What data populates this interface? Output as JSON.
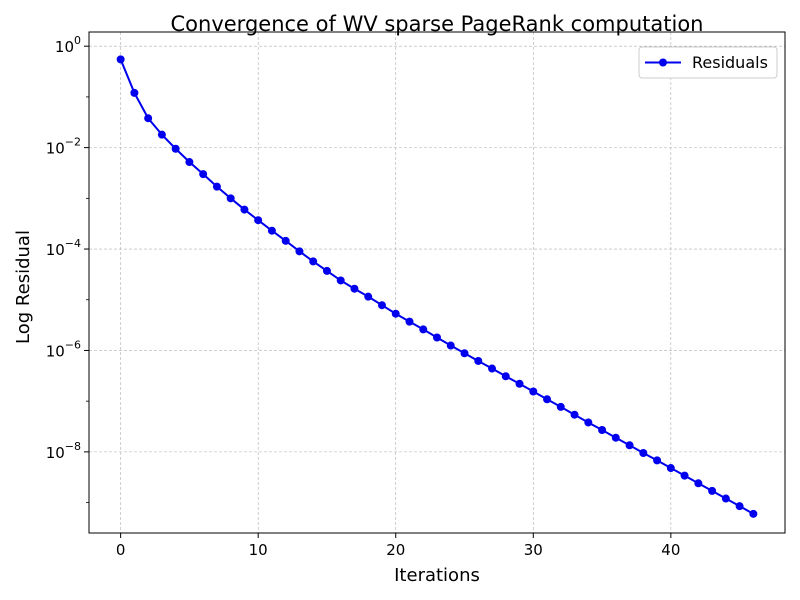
{
  "chart_data": {
    "type": "line",
    "title": "Convergence of WV sparse PageRank computation",
    "xlabel": "Iterations",
    "ylabel": "Log Residual",
    "yscale": "log",
    "xlim": [
      -2.3,
      48.3
    ],
    "ylim_log10": [
      -9.6,
      0.28
    ],
    "x_ticks": [
      0,
      10,
      20,
      30,
      40
    ],
    "y_ticks_log10": [
      0,
      -2,
      -4,
      -6,
      -8
    ],
    "grid": true,
    "legend_position": "top-right",
    "line_color": "#0000ee",
    "series": [
      {
        "name": "Residuals",
        "x": [
          0,
          1,
          2,
          3,
          4,
          5,
          6,
          7,
          8,
          9,
          10,
          11,
          12,
          13,
          14,
          15,
          16,
          17,
          18,
          19,
          20,
          21,
          22,
          23,
          24,
          25,
          26,
          27,
          28,
          29,
          30,
          31,
          32,
          33,
          34,
          35,
          36,
          37,
          38,
          39,
          40,
          41,
          42,
          43,
          44,
          45,
          46
        ],
        "y": [
          0.55,
          0.12,
          0.038,
          0.018,
          0.0095,
          0.0052,
          0.003,
          0.0017,
          0.001,
          0.0006,
          0.00037,
          0.00023,
          0.000145,
          9e-05,
          5.7e-05,
          3.7e-05,
          2.4e-05,
          1.65e-05,
          1.15e-05,
          7.8e-06,
          5.3e-06,
          3.7e-06,
          2.6e-06,
          1.8e-06,
          1.25e-06,
          8.8e-07,
          6.2e-07,
          4.4e-07,
          3.1e-07,
          2.2e-07,
          1.55e-07,
          1.09e-07,
          7.7e-08,
          5.4e-08,
          3.8e-08,
          2.7e-08,
          1.9e-08,
          1.35e-08,
          9.5e-09,
          6.8e-09,
          4.8e-09,
          3.4e-09,
          2.4e-09,
          1.7e-09,
          1.2e-09,
          8.5e-10,
          6e-10
        ]
      }
    ]
  }
}
